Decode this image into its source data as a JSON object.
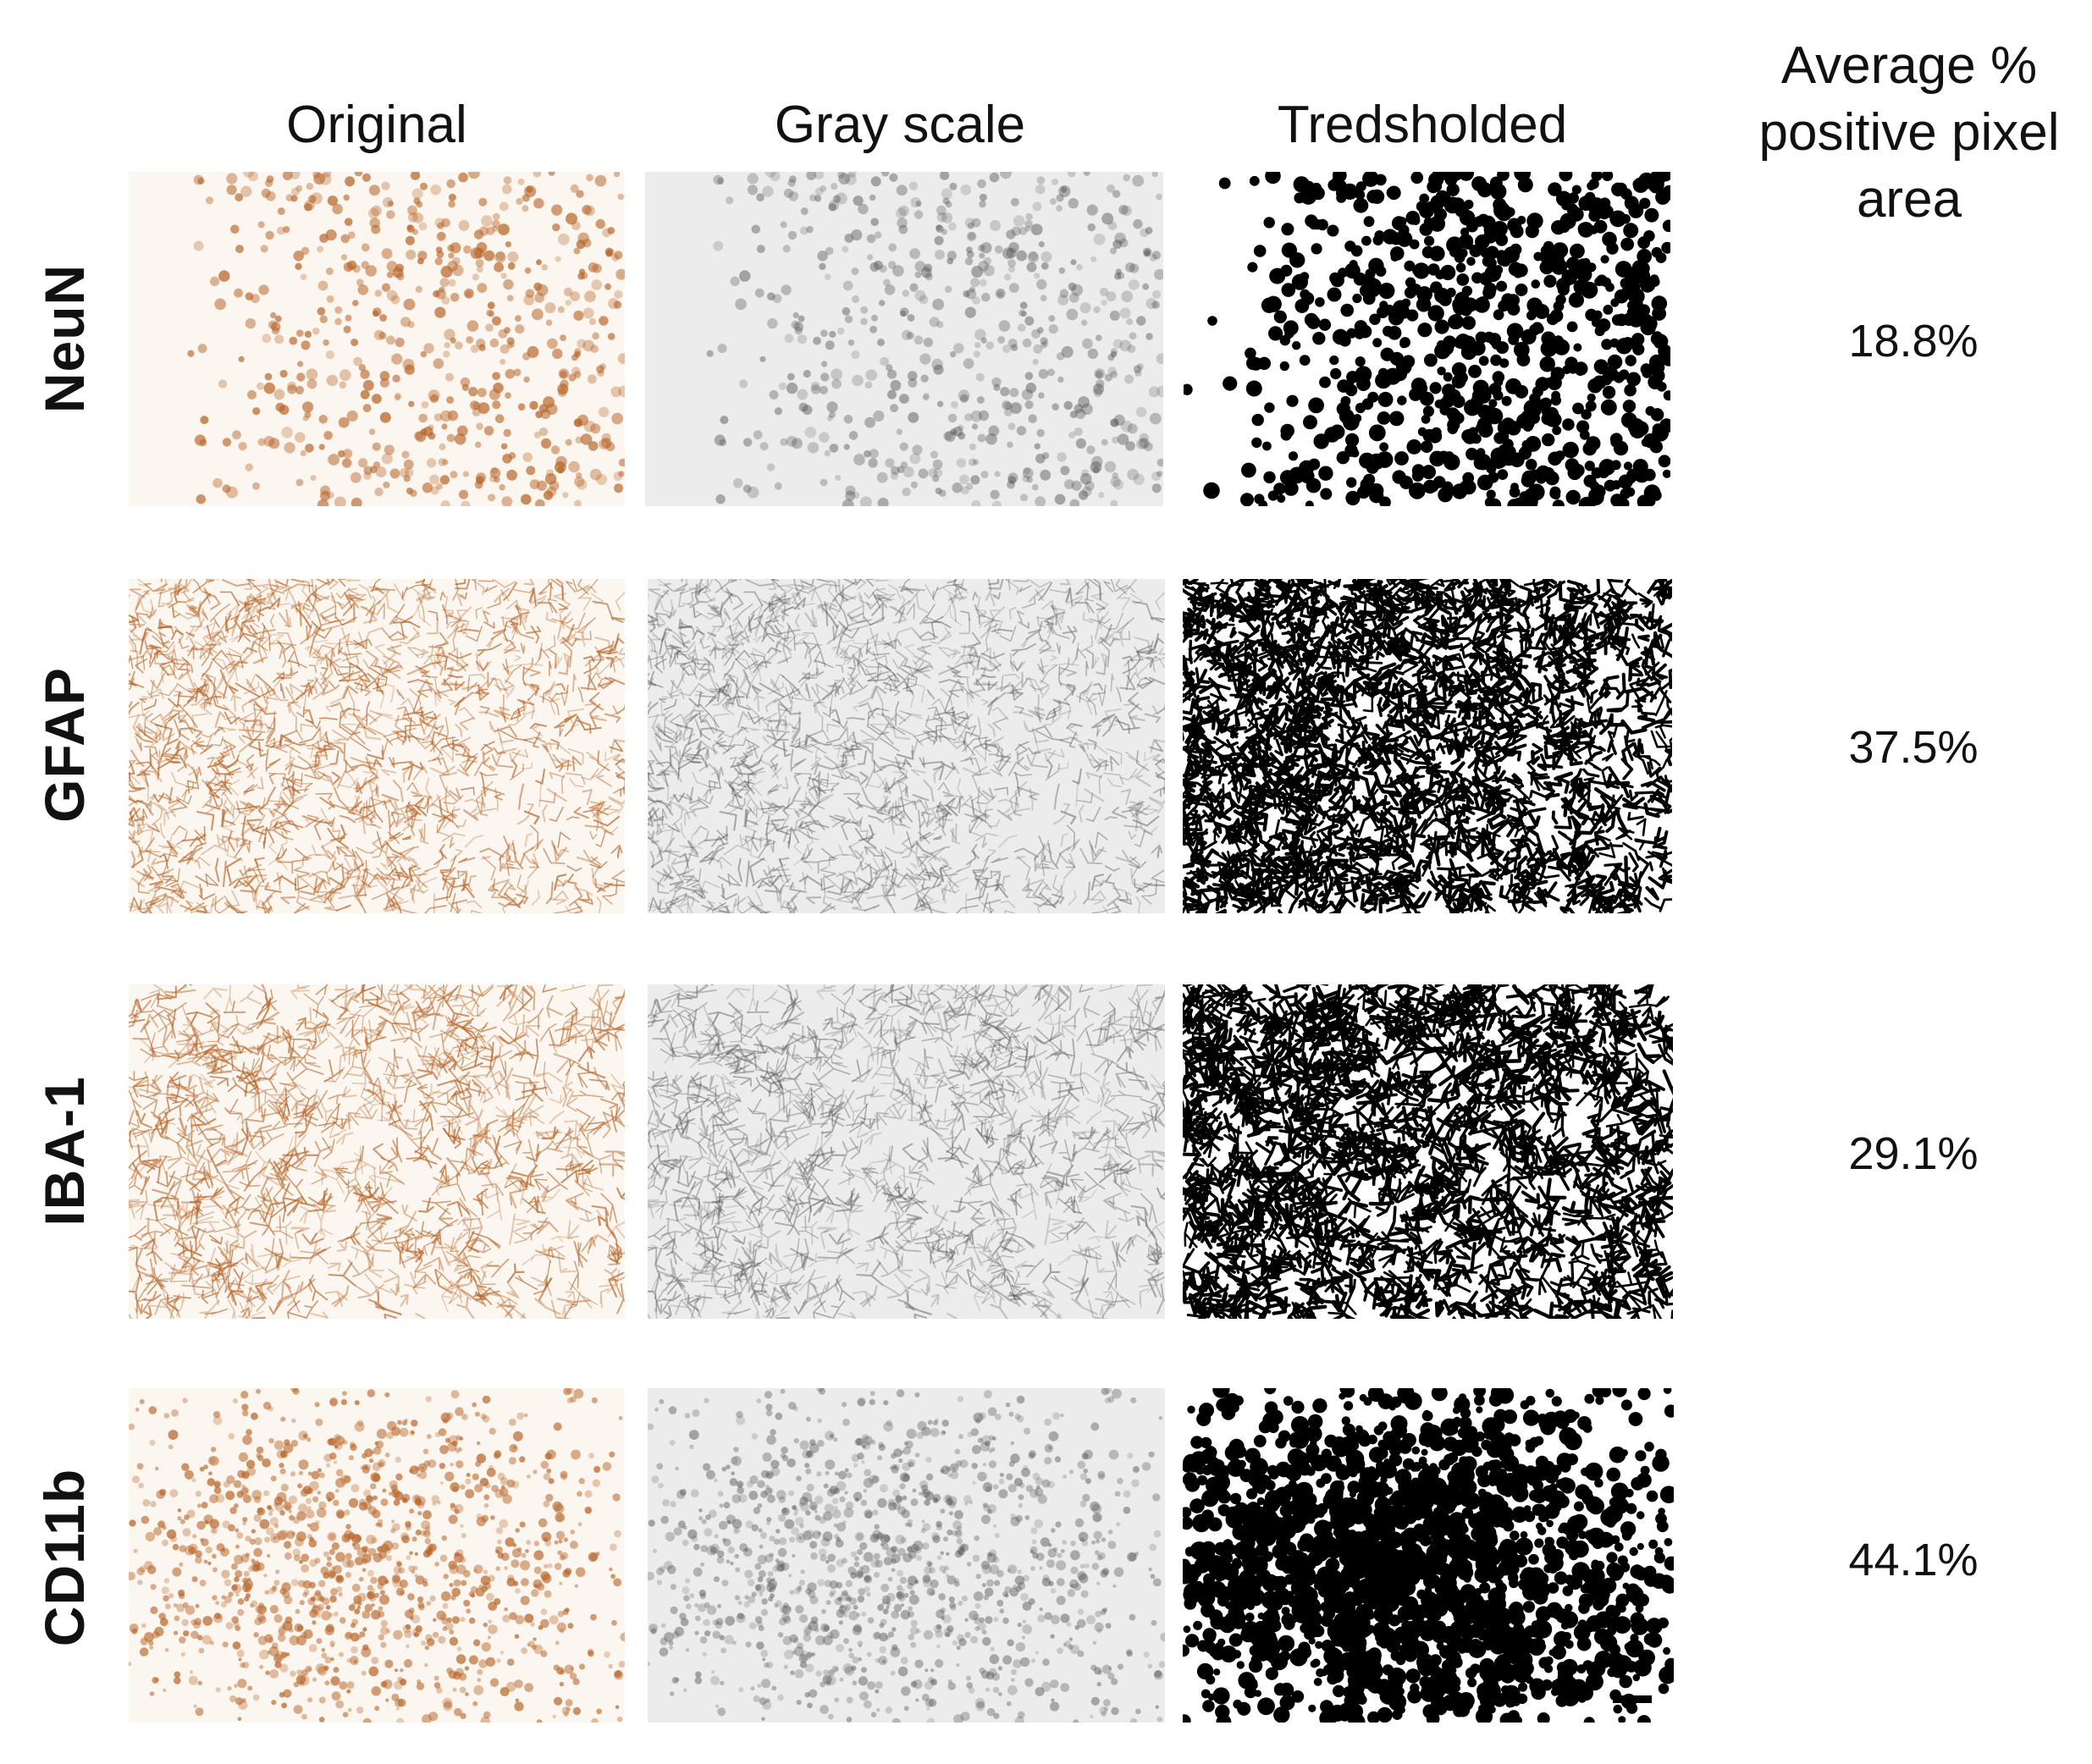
{
  "columns": [
    "Original",
    "Gray scale",
    "Tredsholded"
  ],
  "right_header": [
    "Average %",
    "positive pixel",
    "area"
  ],
  "rows": [
    {
      "label": "NeuN",
      "value": "18.8%",
      "fraction": 0.188,
      "pattern": "cells"
    },
    {
      "label": "GFAP",
      "value": "37.5%",
      "fraction": 0.375,
      "pattern": "fibers"
    },
    {
      "label": "IBA-1",
      "value": "29.1%",
      "fraction": 0.291,
      "pattern": "microglia"
    },
    {
      "label": "CD11b",
      "value": "44.1%",
      "fraction": 0.441,
      "pattern": "dense"
    }
  ],
  "colors": {
    "original_bg": "#fbf6ef",
    "original_stain": "#b8662a",
    "gray_bg": "#ececec",
    "gray_stain": "#555555",
    "threshold_bg": "#ffffff",
    "threshold_stain": "#000000"
  }
}
